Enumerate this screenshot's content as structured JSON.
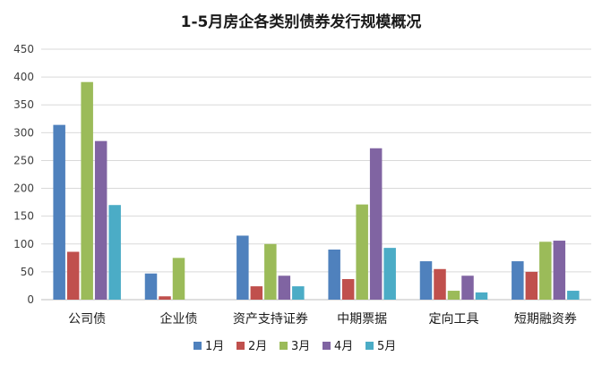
{
  "chart_data": {
    "type": "bar",
    "title": "1-5月房企各类别债券发行规模概况",
    "xlabel": "",
    "ylabel": "",
    "ylim": [
      0,
      450
    ],
    "yticks": [
      0,
      50,
      100,
      150,
      200,
      250,
      300,
      350,
      400,
      450
    ],
    "grid": true,
    "legend_position": "bottom",
    "categories": [
      "公司债",
      "企业债",
      "资产支持证券",
      "中期票据",
      "定向工具",
      "短期融资券"
    ],
    "series": [
      {
        "name": "1月",
        "color": "#4F81BD",
        "values": [
          314,
          47,
          115,
          90,
          69,
          69
        ]
      },
      {
        "name": "2月",
        "color": "#C0504D",
        "values": [
          86,
          6,
          24,
          37,
          55,
          50
        ]
      },
      {
        "name": "3月",
        "color": "#9BBB59",
        "values": [
          391,
          75,
          100,
          171,
          16,
          104
        ]
      },
      {
        "name": "4月",
        "color": "#8064A2",
        "values": [
          285,
          0,
          43,
          272,
          43,
          106
        ]
      },
      {
        "name": "5月",
        "color": "#4BACC6",
        "values": [
          170,
          0,
          24,
          93,
          13,
          16
        ]
      }
    ]
  }
}
